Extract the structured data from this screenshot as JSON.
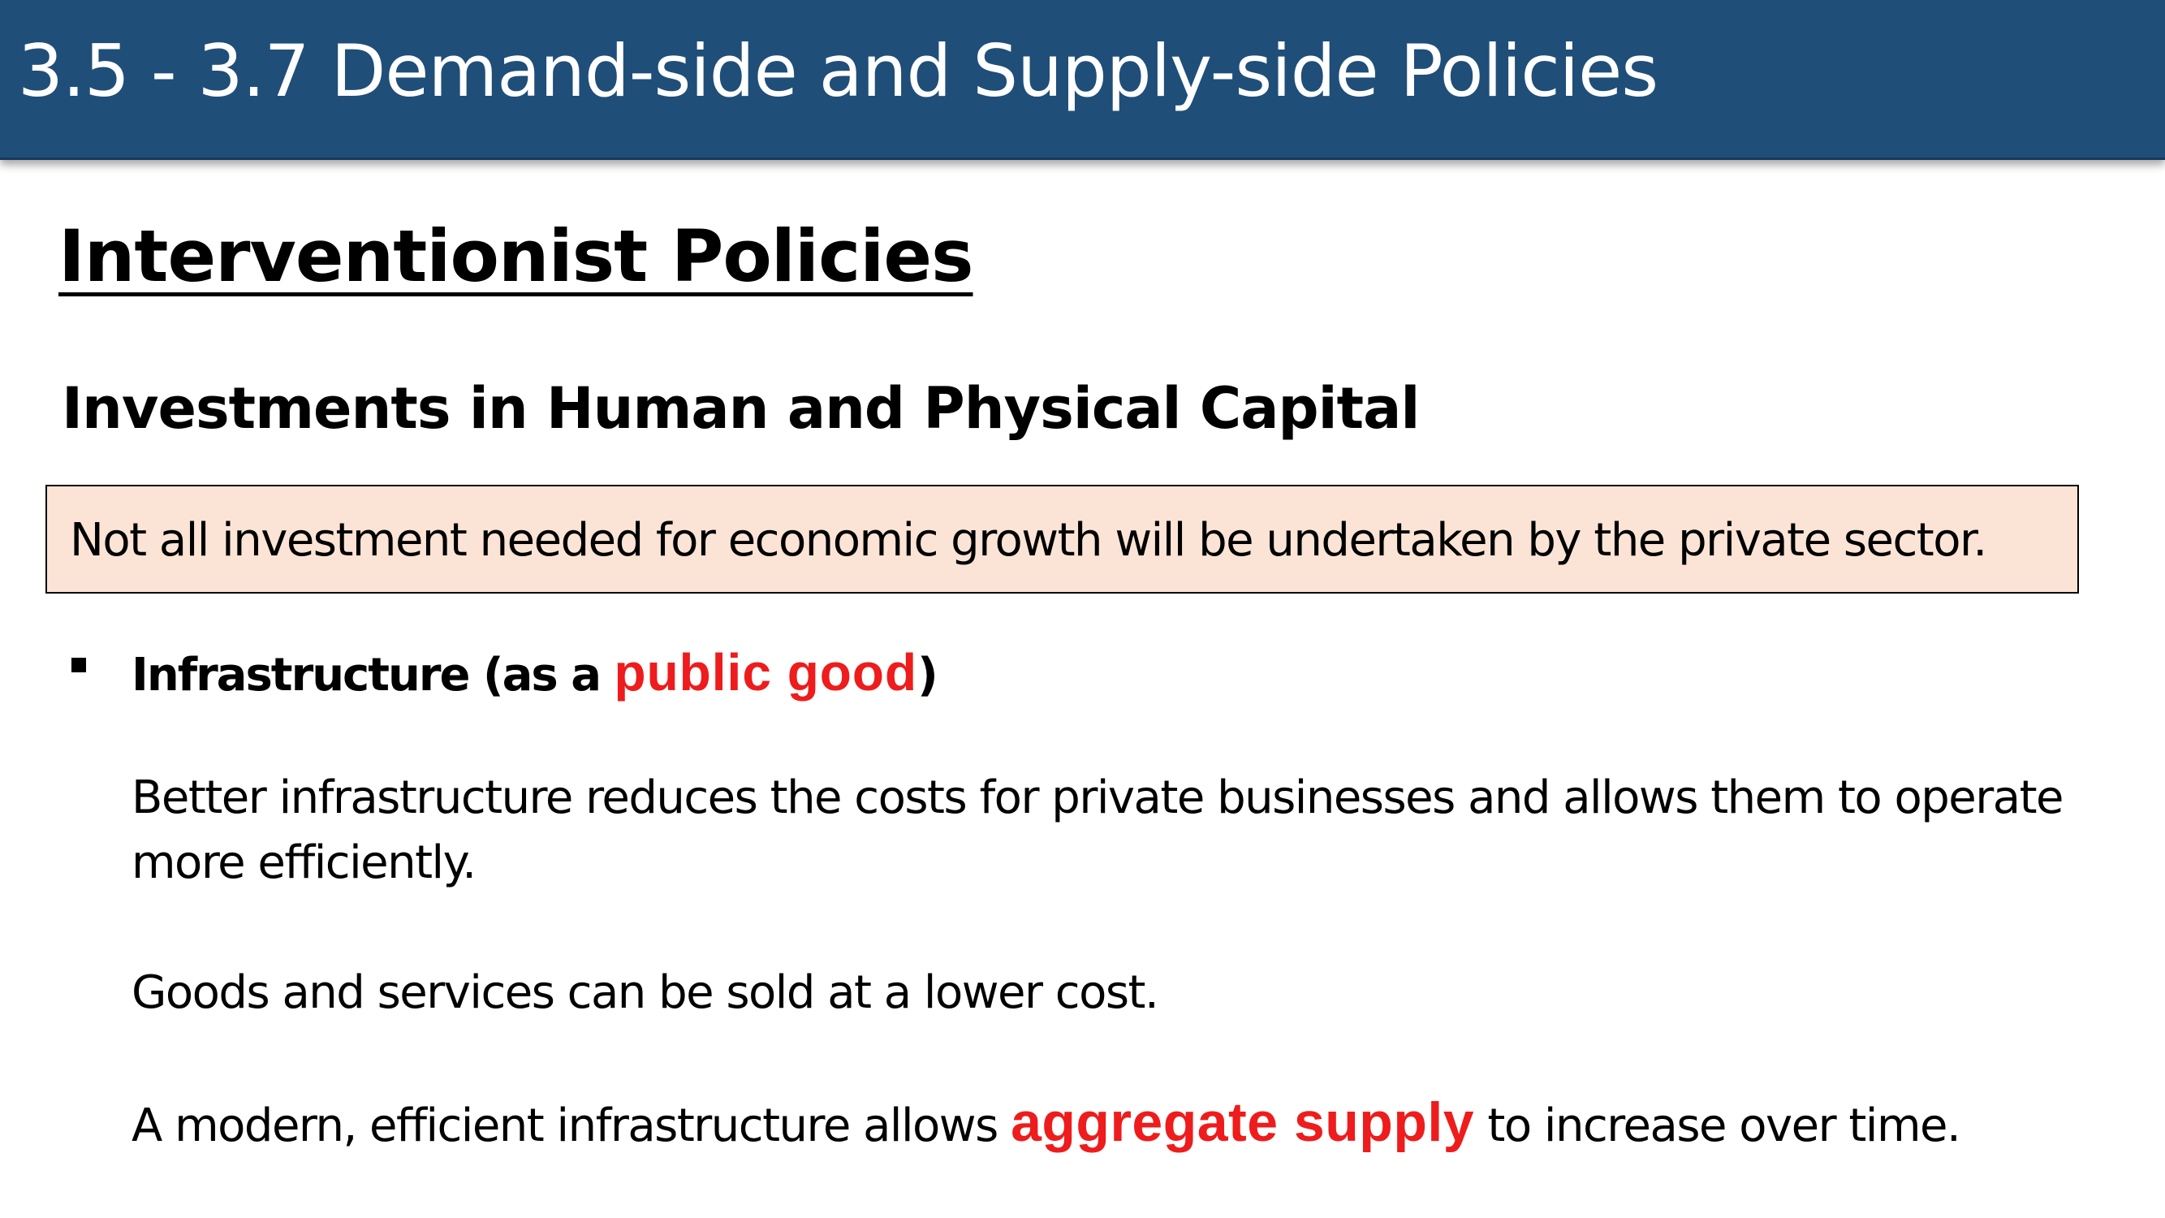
{
  "header": {
    "title": "3.5 - 3.7 Demand-side and Supply-side Policies"
  },
  "colors": {
    "header_background": "#1f4e79",
    "callout_background": "#fbe4d5",
    "accent_red": "#ee1c1c"
  },
  "content": {
    "section_heading": "Interventionist Policies",
    "sub_heading": "Investments in Human and Physical Capital",
    "callout_text": "Not all investment needed for economic growth will be undertaken by the private sector.",
    "bullet": {
      "marker_icon": "square-bullet-icon",
      "prefix": "Infrastructure (as a ",
      "highlight": "public good",
      "suffix": ")"
    },
    "paragraphs": {
      "p1": "Better infrastructure reduces the costs for private businesses and allows them to operate more efficiently.",
      "p2": "Goods and services can be sold at a lower cost.",
      "p3_before": "A modern, efficient infrastructure allows ",
      "p3_highlight": "aggregate supply",
      "p3_after": " to increase over time."
    }
  }
}
